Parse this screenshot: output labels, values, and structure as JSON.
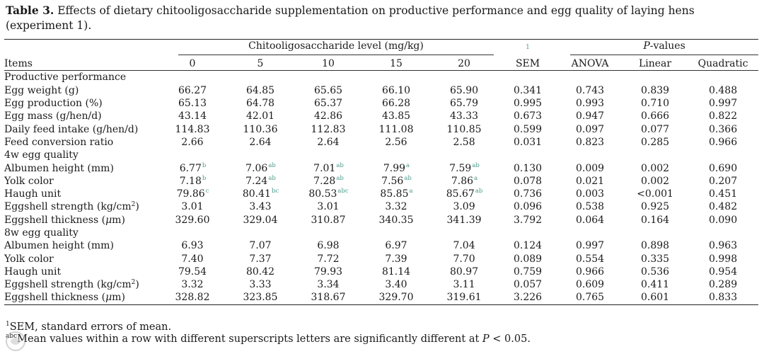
{
  "caption": {
    "label": "Table 3.",
    "text": "Effects of dietary chitooligosaccharide supplementation on productive performance and egg quality of laying hens (experiment 1)."
  },
  "header": {
    "group_label": "Chitooligosaccharide level (mg/kg)",
    "sem_mark": "1",
    "pvalues_italic": "P",
    "pvalues_rest": "-values",
    "items": "Items",
    "levels": [
      "0",
      "5",
      "10",
      "15",
      "20"
    ],
    "sem": "SEM",
    "anova": "ANOVA",
    "linear": "Linear",
    "quadratic": "Quadratic"
  },
  "sections": [
    {
      "title": "Productive performance",
      "rows": [
        {
          "label": "Egg weight (g)",
          "values": [
            "66.27",
            "64.85",
            "65.65",
            "66.10",
            "65.90"
          ],
          "sups": [
            "",
            "",
            "",
            "",
            ""
          ],
          "sem": "0.341",
          "anova": "0.743",
          "linear": "0.839",
          "quadratic": "0.488"
        },
        {
          "label": "Egg production (%)",
          "values": [
            "65.13",
            "64.78",
            "65.37",
            "66.28",
            "65.79"
          ],
          "sups": [
            "",
            "",
            "",
            "",
            ""
          ],
          "sem": "0.995",
          "anova": "0.993",
          "linear": "0.710",
          "quadratic": "0.997"
        },
        {
          "label": "Egg mass (g/hen/d)",
          "values": [
            "43.14",
            "42.01",
            "42.86",
            "43.85",
            "43.33"
          ],
          "sups": [
            "",
            "",
            "",
            "",
            ""
          ],
          "sem": "0.673",
          "anova": "0.947",
          "linear": "0.666",
          "quadratic": "0.822"
        },
        {
          "label": "Daily feed intake (g/hen/d)",
          "values": [
            "114.83",
            "110.36",
            "112.83",
            "111.08",
            "110.85"
          ],
          "sups": [
            "",
            "",
            "",
            "",
            ""
          ],
          "sem": "0.599",
          "anova": "0.097",
          "linear": "0.077",
          "quadratic": "0.366"
        },
        {
          "label": "Feed conversion ratio",
          "values": [
            "2.66",
            "2.64",
            "2.64",
            "2.56",
            "2.58"
          ],
          "sups": [
            "",
            "",
            "",
            "",
            ""
          ],
          "sem": "0.031",
          "anova": "0.823",
          "linear": "0.285",
          "quadratic": "0.966"
        }
      ]
    },
    {
      "title": "4w egg quality",
      "rows": [
        {
          "label": "Albumen height (mm)",
          "values": [
            "6.77",
            "7.06",
            "7.01",
            "7.99",
            "7.59"
          ],
          "sups": [
            "b",
            "ab",
            "ab",
            "a",
            "ab"
          ],
          "sem": "0.130",
          "anova": "0.009",
          "linear": "0.002",
          "quadratic": "0.690"
        },
        {
          "label": "Yolk color",
          "values": [
            "7.18",
            "7.24",
            "7.28",
            "7.56",
            "7.86"
          ],
          "sups": [
            "b",
            "ab",
            "ab",
            "ab",
            "a"
          ],
          "sem": "0.078",
          "anova": "0.021",
          "linear": "0.002",
          "quadratic": "0.207"
        },
        {
          "label": "Haugh unit",
          "values": [
            "79.86",
            "80.41",
            "80.53",
            "85.85",
            "85.67"
          ],
          "sups": [
            "c",
            "bc",
            "abc",
            "a",
            "ab"
          ],
          "sem": "0.736",
          "anova": "0.003",
          "linear": "<0.001",
          "quadratic": "0.451"
        },
        {
          "label": "Eggshell strength (kg/cm",
          "label_sup": "2",
          "label_end": ")",
          "values": [
            "3.01",
            "3.43",
            "3.01",
            "3.32",
            "3.09"
          ],
          "sups": [
            "",
            "",
            "",
            "",
            ""
          ],
          "sem": "0.096",
          "anova": "0.538",
          "linear": "0.925",
          "quadratic": "0.482"
        },
        {
          "label": "Eggshell thickness (",
          "label_mu": "μ",
          "label_end": "m)",
          "values": [
            "329.60",
            "329.04",
            "310.87",
            "340.35",
            "341.39"
          ],
          "sups": [
            "",
            "",
            "",
            "",
            ""
          ],
          "sem": "3.792",
          "anova": "0.064",
          "linear": "0.164",
          "quadratic": "0.090"
        }
      ]
    },
    {
      "title": "8w egg quality",
      "rows": [
        {
          "label": "Albumen height (mm)",
          "values": [
            "6.93",
            "7.07",
            "6.98",
            "6.97",
            "7.04"
          ],
          "sups": [
            "",
            "",
            "",
            "",
            ""
          ],
          "sem": "0.124",
          "anova": "0.997",
          "linear": "0.898",
          "quadratic": "0.963"
        },
        {
          "label": "Yolk color",
          "values": [
            "7.40",
            "7.37",
            "7.72",
            "7.39",
            "7.70"
          ],
          "sups": [
            "",
            "",
            "",
            "",
            ""
          ],
          "sem": "0.089",
          "anova": "0.554",
          "linear": "0.335",
          "quadratic": "0.998"
        },
        {
          "label": "Haugh unit",
          "values": [
            "79.54",
            "80.42",
            "79.93",
            "81.14",
            "80.97"
          ],
          "sups": [
            "",
            "",
            "",
            "",
            ""
          ],
          "sem": "0.759",
          "anova": "0.966",
          "linear": "0.536",
          "quadratic": "0.954"
        },
        {
          "label": "Eggshell strength (kg/cm",
          "label_sup": "2",
          "label_end": ")",
          "values": [
            "3.32",
            "3.33",
            "3.34",
            "3.40",
            "3.11"
          ],
          "sups": [
            "",
            "",
            "",
            "",
            ""
          ],
          "sem": "0.057",
          "anova": "0.609",
          "linear": "0.411",
          "quadratic": "0.289"
        },
        {
          "label": "Eggshell thickness (",
          "label_mu": "μ",
          "label_end": "m)",
          "values": [
            "328.82",
            "323.85",
            "318.67",
            "329.70",
            "319.61"
          ],
          "sups": [
            "",
            "",
            "",
            "",
            ""
          ],
          "sem": "3.226",
          "anova": "0.765",
          "linear": "0.601",
          "quadratic": "0.833"
        }
      ]
    }
  ],
  "footnotes": [
    {
      "mark": "1",
      "text": "SEM, standard errors of mean."
    },
    {
      "mark": "abc",
      "text": "Mean values within a row with different superscripts letters are significantly different at ",
      "italic": "P",
      "end": " < 0.05."
    }
  ],
  "colors": {
    "superscript": "#4a9a8a",
    "text": "#1a1a1a",
    "rule": "#222222"
  }
}
